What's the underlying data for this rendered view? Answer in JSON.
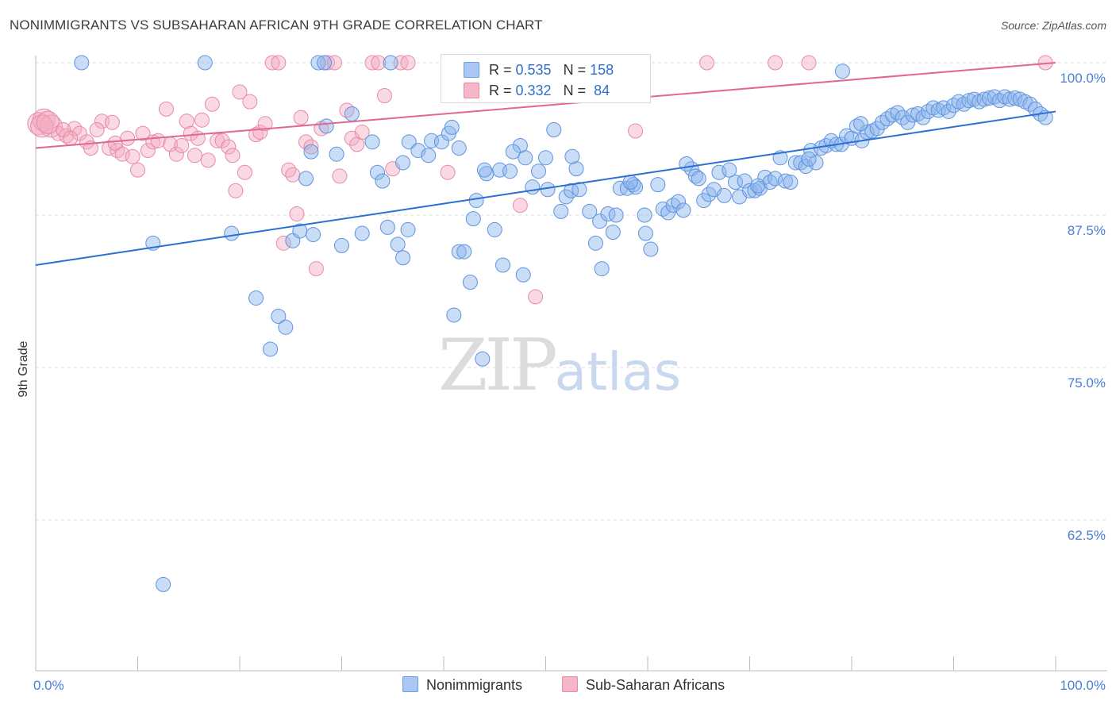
{
  "header": {
    "title": "NONIMMIGRANTS VS SUBSAHARAN AFRICAN 9TH GRADE CORRELATION CHART",
    "source": "Source: ZipAtlas.com"
  },
  "watermark": {
    "zip": "ZIP",
    "atlas": "atlas"
  },
  "stats": [
    {
      "r_label": "R = ",
      "r_value": "0.535",
      "n_label": "N = ",
      "n_value": "158",
      "color": "#a9c7f2",
      "border": "#6f9de0"
    },
    {
      "r_label": "R = ",
      "r_value": "0.332",
      "n_label": "N = ",
      "n_value": " 84",
      "color": "#f7b6c8",
      "border": "#e98aa6"
    }
  ],
  "legend": [
    {
      "label": "Nonimmigrants",
      "color": "#a9c7f2",
      "border": "#6f9de0"
    },
    {
      "label": "Sub-Saharan Africans",
      "color": "#f7b6c8",
      "border": "#e98aa6"
    }
  ],
  "colors": {
    "blue_fill": "rgba(138,180,238,0.45)",
    "blue_stroke": "#5f93dd",
    "blue_line": "#2a6fd1",
    "pink_fill": "rgba(245,170,192,0.45)",
    "pink_stroke": "#e68aa7",
    "pink_line": "#e0688f",
    "grid": "#dddddd",
    "axis": "#bbbbbb"
  },
  "chart_data": {
    "type": "scatter",
    "title": "NONIMMIGRANTS VS SUBSAHARAN AFRICAN 9TH GRADE CORRELATION CHART",
    "xlabel": "",
    "ylabel": "9th Grade",
    "x_unit": "%",
    "xlim": [
      0,
      100
    ],
    "ylim": [
      51.5,
      101.5
    ],
    "x_tick_labels": [
      {
        "value": 0,
        "label": "0.0%"
      },
      {
        "value": 100,
        "label": "100.0%"
      }
    ],
    "y_ticks": [
      {
        "value": 100,
        "label": "100.0%"
      },
      {
        "value": 87.5,
        "label": "87.5%"
      },
      {
        "value": 75,
        "label": "75.0%"
      },
      {
        "value": 62.5,
        "label": "62.5%"
      }
    ],
    "grid": true,
    "legend_position": "bottom",
    "series": [
      {
        "name": "Nonimmigrants",
        "r": 0.535,
        "n": 158,
        "trend": {
          "x": [
            0,
            100
          ],
          "y": [
            83.4,
            96.0
          ]
        },
        "points": [
          [
            4.5,
            100
          ],
          [
            16.6,
            100
          ],
          [
            27.7,
            100
          ],
          [
            28.3,
            100
          ],
          [
            34.8,
            100
          ],
          [
            57.2,
            99.8
          ],
          [
            79.1,
            99.3
          ],
          [
            11.5,
            85.2
          ],
          [
            19.2,
            86.0
          ],
          [
            21.6,
            80.7
          ],
          [
            23.0,
            76.5
          ],
          [
            23.8,
            79.2
          ],
          [
            24.5,
            78.3
          ],
          [
            25.2,
            85.4
          ],
          [
            25.9,
            86.2
          ],
          [
            26.5,
            90.5
          ],
          [
            27.2,
            85.9
          ],
          [
            28.5,
            94.8
          ],
          [
            29.5,
            92.5
          ],
          [
            30.0,
            85.0
          ],
          [
            31.0,
            95.8
          ],
          [
            32.0,
            86.0
          ],
          [
            33.0,
            93.5
          ],
          [
            33.5,
            91.0
          ],
          [
            34.0,
            90.3
          ],
          [
            34.5,
            86.5
          ],
          [
            35.5,
            85.1
          ],
          [
            36.0,
            84.0
          ],
          [
            36.5,
            86.3
          ],
          [
            36.6,
            93.5
          ],
          [
            37.5,
            92.8
          ],
          [
            38.5,
            92.4
          ],
          [
            38.8,
            93.6
          ],
          [
            39.8,
            93.5
          ],
          [
            40.5,
            94.2
          ],
          [
            40.8,
            94.7
          ],
          [
            41.0,
            79.3
          ],
          [
            41.5,
            84.5
          ],
          [
            42.0,
            84.5
          ],
          [
            42.6,
            82.0
          ],
          [
            42.9,
            87.2
          ],
          [
            43.2,
            88.7
          ],
          [
            43.8,
            75.7
          ],
          [
            44.2,
            90.9
          ],
          [
            45.0,
            86.3
          ],
          [
            45.5,
            91.2
          ],
          [
            45.8,
            83.4
          ],
          [
            46.5,
            91.1
          ],
          [
            47.5,
            93.2
          ],
          [
            47.8,
            82.6
          ],
          [
            48.0,
            92.2
          ],
          [
            48.7,
            89.8
          ],
          [
            49.3,
            91.1
          ],
          [
            50.0,
            92.2
          ],
          [
            50.2,
            89.6
          ],
          [
            50.8,
            94.5
          ],
          [
            51.5,
            87.8
          ],
          [
            52.0,
            89.0
          ],
          [
            52.5,
            89.5
          ],
          [
            53.0,
            91.3
          ],
          [
            53.3,
            89.6
          ],
          [
            54.3,
            87.8
          ],
          [
            54.9,
            85.2
          ],
          [
            55.3,
            87.0
          ],
          [
            55.5,
            83.1
          ],
          [
            56.1,
            87.6
          ],
          [
            56.6,
            86.1
          ],
          [
            56.9,
            87.5
          ],
          [
            57.3,
            89.7
          ],
          [
            58.0,
            89.7
          ],
          [
            58.6,
            90.0
          ],
          [
            58.8,
            89.8
          ],
          [
            59.7,
            87.5
          ],
          [
            59.8,
            86.0
          ],
          [
            60.3,
            84.7
          ],
          [
            61.0,
            90.0
          ],
          [
            61.5,
            88.0
          ],
          [
            62.0,
            87.7
          ],
          [
            62.5,
            88.3
          ],
          [
            63.0,
            88.6
          ],
          [
            63.5,
            87.9
          ],
          [
            64.3,
            91.3
          ],
          [
            64.7,
            90.7
          ],
          [
            65.0,
            90.5
          ],
          [
            65.5,
            88.7
          ],
          [
            66.0,
            89.2
          ],
          [
            66.5,
            89.6
          ],
          [
            67.0,
            91.0
          ],
          [
            67.5,
            89.1
          ],
          [
            68.0,
            91.2
          ],
          [
            68.6,
            90.2
          ],
          [
            69.0,
            89.0
          ],
          [
            69.5,
            90.3
          ],
          [
            70.0,
            89.5
          ],
          [
            70.5,
            89.5
          ],
          [
            71.0,
            89.7
          ],
          [
            71.5,
            90.6
          ],
          [
            72.0,
            90.2
          ],
          [
            72.5,
            90.5
          ],
          [
            73.0,
            92.2
          ],
          [
            73.5,
            90.3
          ],
          [
            74.0,
            90.2
          ],
          [
            74.5,
            91.8
          ],
          [
            75.0,
            91.8
          ],
          [
            75.5,
            91.5
          ],
          [
            76.0,
            92.8
          ],
          [
            76.5,
            91.8
          ],
          [
            77.0,
            93.0
          ],
          [
            77.5,
            93.2
          ],
          [
            78.0,
            93.6
          ],
          [
            78.5,
            93.3
          ],
          [
            79.0,
            93.3
          ],
          [
            79.5,
            94.0
          ],
          [
            80.0,
            93.8
          ],
          [
            80.5,
            94.8
          ],
          [
            81.0,
            93.6
          ],
          [
            81.5,
            94.3
          ],
          [
            82.0,
            94.4
          ],
          [
            82.5,
            94.6
          ],
          [
            83.0,
            95.1
          ],
          [
            83.5,
            95.4
          ],
          [
            84.0,
            95.7
          ],
          [
            84.5,
            95.9
          ],
          [
            85.0,
            95.5
          ],
          [
            85.5,
            95.1
          ],
          [
            86.0,
            95.7
          ],
          [
            86.5,
            95.8
          ],
          [
            87.0,
            95.5
          ],
          [
            87.5,
            96.0
          ],
          [
            88.0,
            96.3
          ],
          [
            88.5,
            96.1
          ],
          [
            89.0,
            96.3
          ],
          [
            89.5,
            96.0
          ],
          [
            90.0,
            96.5
          ],
          [
            90.5,
            96.8
          ],
          [
            91.0,
            96.6
          ],
          [
            91.5,
            96.9
          ],
          [
            92.0,
            97.0
          ],
          [
            92.5,
            96.8
          ],
          [
            93.0,
            97.0
          ],
          [
            93.5,
            97.1
          ],
          [
            94.0,
            97.2
          ],
          [
            94.5,
            96.9
          ],
          [
            95.0,
            97.2
          ],
          [
            95.5,
            97.0
          ],
          [
            96.0,
            97.1
          ],
          [
            96.5,
            97.0
          ],
          [
            97.0,
            96.8
          ],
          [
            97.5,
            96.6
          ],
          [
            98.0,
            96.2
          ],
          [
            98.5,
            95.8
          ],
          [
            99.0,
            95.5
          ],
          [
            12.5,
            57.2
          ],
          [
            27.0,
            92.7
          ],
          [
            36.0,
            91.8
          ],
          [
            41.5,
            93.0
          ],
          [
            44.0,
            91.2
          ],
          [
            46.8,
            92.7
          ],
          [
            52.6,
            92.3
          ],
          [
            58.3,
            90.2
          ],
          [
            63.8,
            91.7
          ],
          [
            70.8,
            89.9
          ],
          [
            75.8,
            92.1
          ],
          [
            80.9,
            95.0
          ]
        ]
      },
      {
        "name": "Sub-Saharan Africans",
        "r": 0.332,
        "n": 84,
        "trend": {
          "x": [
            0,
            100
          ],
          "y": [
            93.0,
            100.0
          ]
        },
        "points": [
          [
            0.3,
            95.0
          ],
          [
            0.8,
            95.3
          ],
          [
            1.5,
            94.8
          ],
          [
            2.2,
            94.2
          ],
          [
            3.0,
            94.0
          ],
          [
            3.8,
            94.6
          ],
          [
            4.3,
            94.2
          ],
          [
            5.0,
            93.5
          ],
          [
            5.4,
            93.0
          ],
          [
            6.5,
            95.2
          ],
          [
            7.2,
            93.0
          ],
          [
            7.5,
            95.1
          ],
          [
            8.0,
            92.8
          ],
          [
            8.5,
            92.5
          ],
          [
            9.0,
            93.8
          ],
          [
            9.5,
            92.3
          ],
          [
            10.0,
            91.2
          ],
          [
            10.5,
            94.2
          ],
          [
            11.0,
            92.8
          ],
          [
            11.5,
            93.5
          ],
          [
            12.0,
            93.6
          ],
          [
            12.8,
            96.2
          ],
          [
            13.2,
            93.3
          ],
          [
            13.8,
            92.5
          ],
          [
            14.3,
            93.2
          ],
          [
            14.8,
            95.2
          ],
          [
            15.2,
            94.2
          ],
          [
            15.6,
            92.4
          ],
          [
            16.3,
            95.3
          ],
          [
            16.9,
            92.0
          ],
          [
            17.3,
            96.6
          ],
          [
            17.8,
            93.6
          ],
          [
            18.3,
            93.6
          ],
          [
            18.9,
            93.1
          ],
          [
            19.3,
            92.4
          ],
          [
            19.6,
            89.5
          ],
          [
            20.0,
            97.6
          ],
          [
            20.5,
            91.0
          ],
          [
            21.0,
            96.8
          ],
          [
            21.6,
            94.1
          ],
          [
            22.0,
            94.3
          ],
          [
            22.5,
            95.0
          ],
          [
            23.2,
            100
          ],
          [
            23.8,
            100
          ],
          [
            24.3,
            85.2
          ],
          [
            24.8,
            91.2
          ],
          [
            25.2,
            90.8
          ],
          [
            25.6,
            87.6
          ],
          [
            26.0,
            95.5
          ],
          [
            26.5,
            93.5
          ],
          [
            27.0,
            93.1
          ],
          [
            27.5,
            83.1
          ],
          [
            28.0,
            94.6
          ],
          [
            28.6,
            100
          ],
          [
            29.3,
            100
          ],
          [
            29.8,
            90.7
          ],
          [
            30.5,
            96.1
          ],
          [
            31.0,
            93.8
          ],
          [
            31.5,
            93.3
          ],
          [
            32.0,
            94.3
          ],
          [
            33.0,
            100
          ],
          [
            33.6,
            100
          ],
          [
            34.2,
            97.3
          ],
          [
            35.0,
            91.3
          ],
          [
            35.8,
            100
          ],
          [
            36.5,
            100
          ],
          [
            40.4,
            91.0
          ],
          [
            42.0,
            100
          ],
          [
            44.2,
            100
          ],
          [
            47.5,
            88.3
          ],
          [
            48.5,
            100
          ],
          [
            49.0,
            80.8
          ],
          [
            58.8,
            94.4
          ],
          [
            65.8,
            100
          ],
          [
            72.5,
            100
          ],
          [
            75.8,
            100
          ],
          [
            99.0,
            100
          ],
          [
            0.6,
            94.8
          ],
          [
            1.2,
            95.1
          ],
          [
            2.7,
            94.5
          ],
          [
            3.4,
            93.8
          ],
          [
            6.0,
            94.5
          ],
          [
            7.8,
            93.4
          ],
          [
            15.9,
            93.8
          ]
        ]
      }
    ]
  }
}
